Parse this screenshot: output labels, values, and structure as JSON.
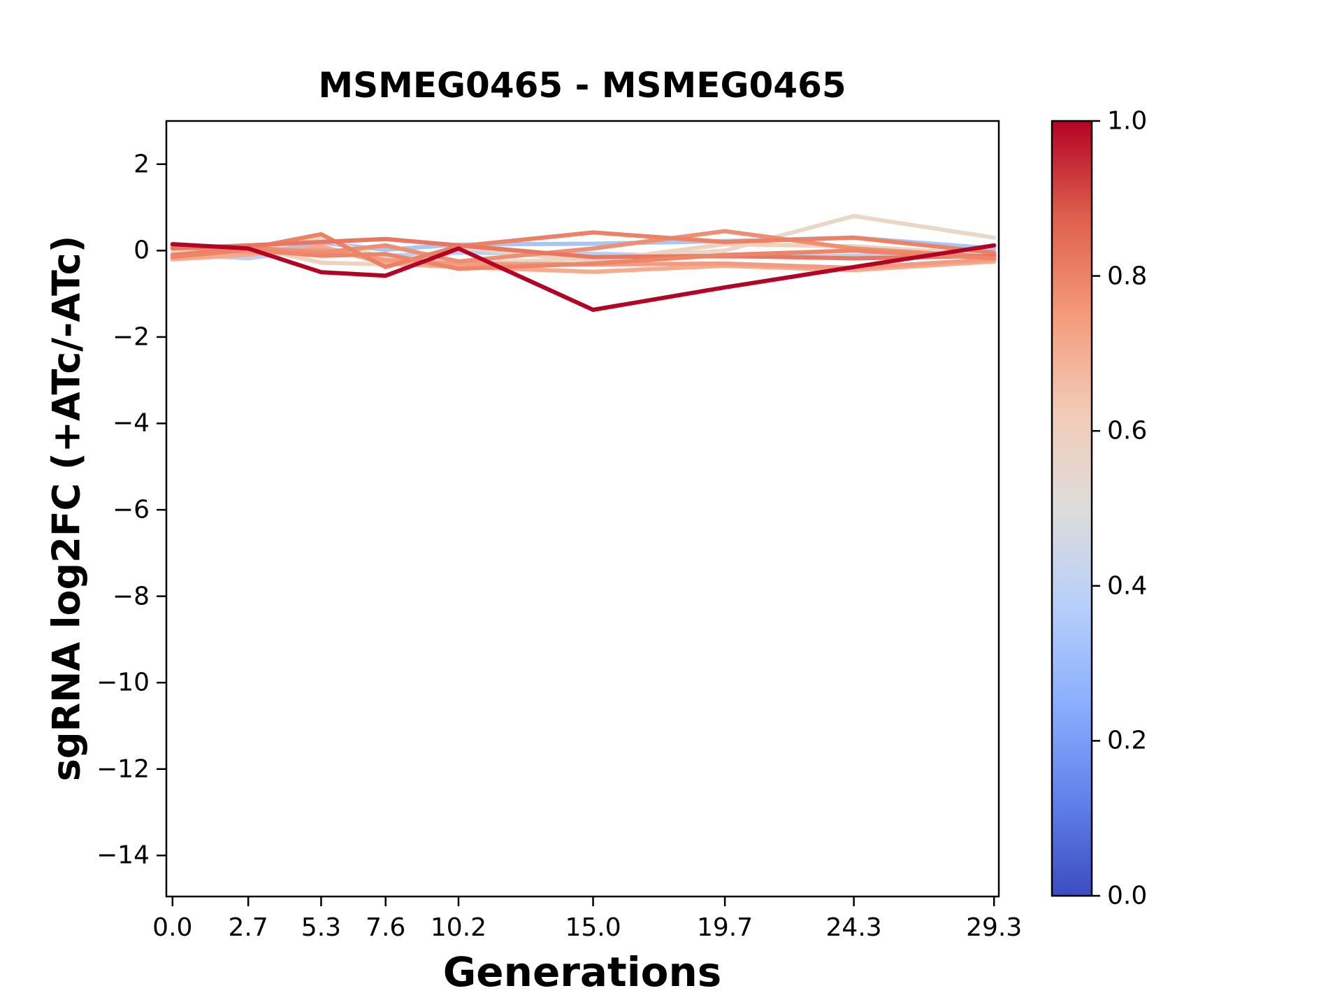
{
  "figure": {
    "title": "MSMEG0465 - MSMEG0465",
    "xlabel": "Generations",
    "ylabel": "sgRNA log2FC (+ATc/-ATc)"
  },
  "chart_data": {
    "type": "line",
    "title": "MSMEG0465 - MSMEG0465",
    "xlabel": "Generations",
    "ylabel": "sgRNA log2FC (+ATc/-ATc)",
    "grid": false,
    "x": [
      0.0,
      2.7,
      5.3,
      7.6,
      10.2,
      15.0,
      19.7,
      24.3,
      29.3
    ],
    "xtick_labels": [
      "0.0",
      "2.7",
      "5.3",
      "7.6",
      "10.2",
      "15.0",
      "19.7",
      "24.3",
      "29.3"
    ],
    "ytick_values": [
      2,
      0,
      -2,
      -4,
      -6,
      -8,
      -10,
      -12,
      -14
    ],
    "ytick_labels": [
      "2",
      "0",
      "−2",
      "−4",
      "−6",
      "−8",
      "−10",
      "−12",
      "−14"
    ],
    "xlim": [
      -0.22,
      29.47
    ],
    "ylim": [
      -14.95,
      3.0
    ],
    "series": [
      {
        "color": "#b9d0f2",
        "values": [
          -0.08,
          -0.18,
          0.05,
          -0.12,
          -0.05,
          -0.07,
          -0.15,
          -0.12,
          0.0
        ]
      },
      {
        "color": "#a9c6f0",
        "values": [
          0.05,
          -0.1,
          0.18,
          0.02,
          0.14,
          0.16,
          0.22,
          0.3,
          0.05
        ]
      },
      {
        "color": "#e9d8c8",
        "values": [
          0.1,
          0.0,
          0.29,
          -0.18,
          -0.28,
          -0.2,
          0.0,
          0.8,
          0.3
        ]
      },
      {
        "color": "#edd3bd",
        "values": [
          -0.05,
          0.1,
          -0.28,
          -0.32,
          0.08,
          -0.25,
          0.15,
          0.1,
          -0.1
        ]
      },
      {
        "color": "#f5ab90",
        "values": [
          -0.2,
          -0.1,
          0.1,
          -0.3,
          -0.38,
          -0.49,
          -0.35,
          -0.45,
          -0.25
        ]
      },
      {
        "color": "#f29b80",
        "values": [
          0.1,
          -0.05,
          0.02,
          -0.22,
          -0.3,
          -0.32,
          -0.3,
          -0.4,
          -0.2
        ]
      },
      {
        "color": "#ef8e71",
        "values": [
          0.12,
          0.08,
          -0.05,
          0.12,
          -0.25,
          0.05,
          0.45,
          0.05,
          -0.15
        ]
      },
      {
        "color": "#ec8165",
        "values": [
          -0.1,
          0.05,
          0.38,
          -0.38,
          0.1,
          0.42,
          0.2,
          0.3,
          -0.05
        ]
      },
      {
        "color": "#e97660",
        "values": [
          0.05,
          0.12,
          0.2,
          0.27,
          0.12,
          -0.15,
          -0.12,
          -0.18,
          -0.12
        ]
      },
      {
        "color": "#ee8468",
        "values": [
          -0.15,
          0.02,
          -0.12,
          -0.08,
          -0.42,
          -0.3,
          -0.1,
          0.0,
          -0.18
        ]
      },
      {
        "color": "#b40426",
        "values": [
          0.15,
          0.05,
          -0.5,
          -0.58,
          0.05,
          -1.37,
          -0.85,
          -0.38,
          0.12
        ]
      }
    ],
    "colorbar": {
      "cmap": "coolwarm",
      "tick_values": [
        0.0,
        0.2,
        0.4,
        0.6,
        0.8,
        1.0
      ],
      "tick_labels": [
        "0.0",
        "0.2",
        "0.4",
        "0.6",
        "0.8",
        "1.0"
      ],
      "gradient_stops": [
        {
          "at": 0.0,
          "color": "#b40426"
        },
        {
          "at": 0.125,
          "color": "#de604d"
        },
        {
          "at": 0.25,
          "color": "#f49a7b"
        },
        {
          "at": 0.375,
          "color": "#f2cbb7"
        },
        {
          "at": 0.5,
          "color": "#dedcdb"
        },
        {
          "at": 0.625,
          "color": "#b7cff9"
        },
        {
          "at": 0.75,
          "color": "#8caffe"
        },
        {
          "at": 0.875,
          "color": "#6282ea"
        },
        {
          "at": 1.0,
          "color": "#3b4cc0"
        }
      ]
    }
  }
}
